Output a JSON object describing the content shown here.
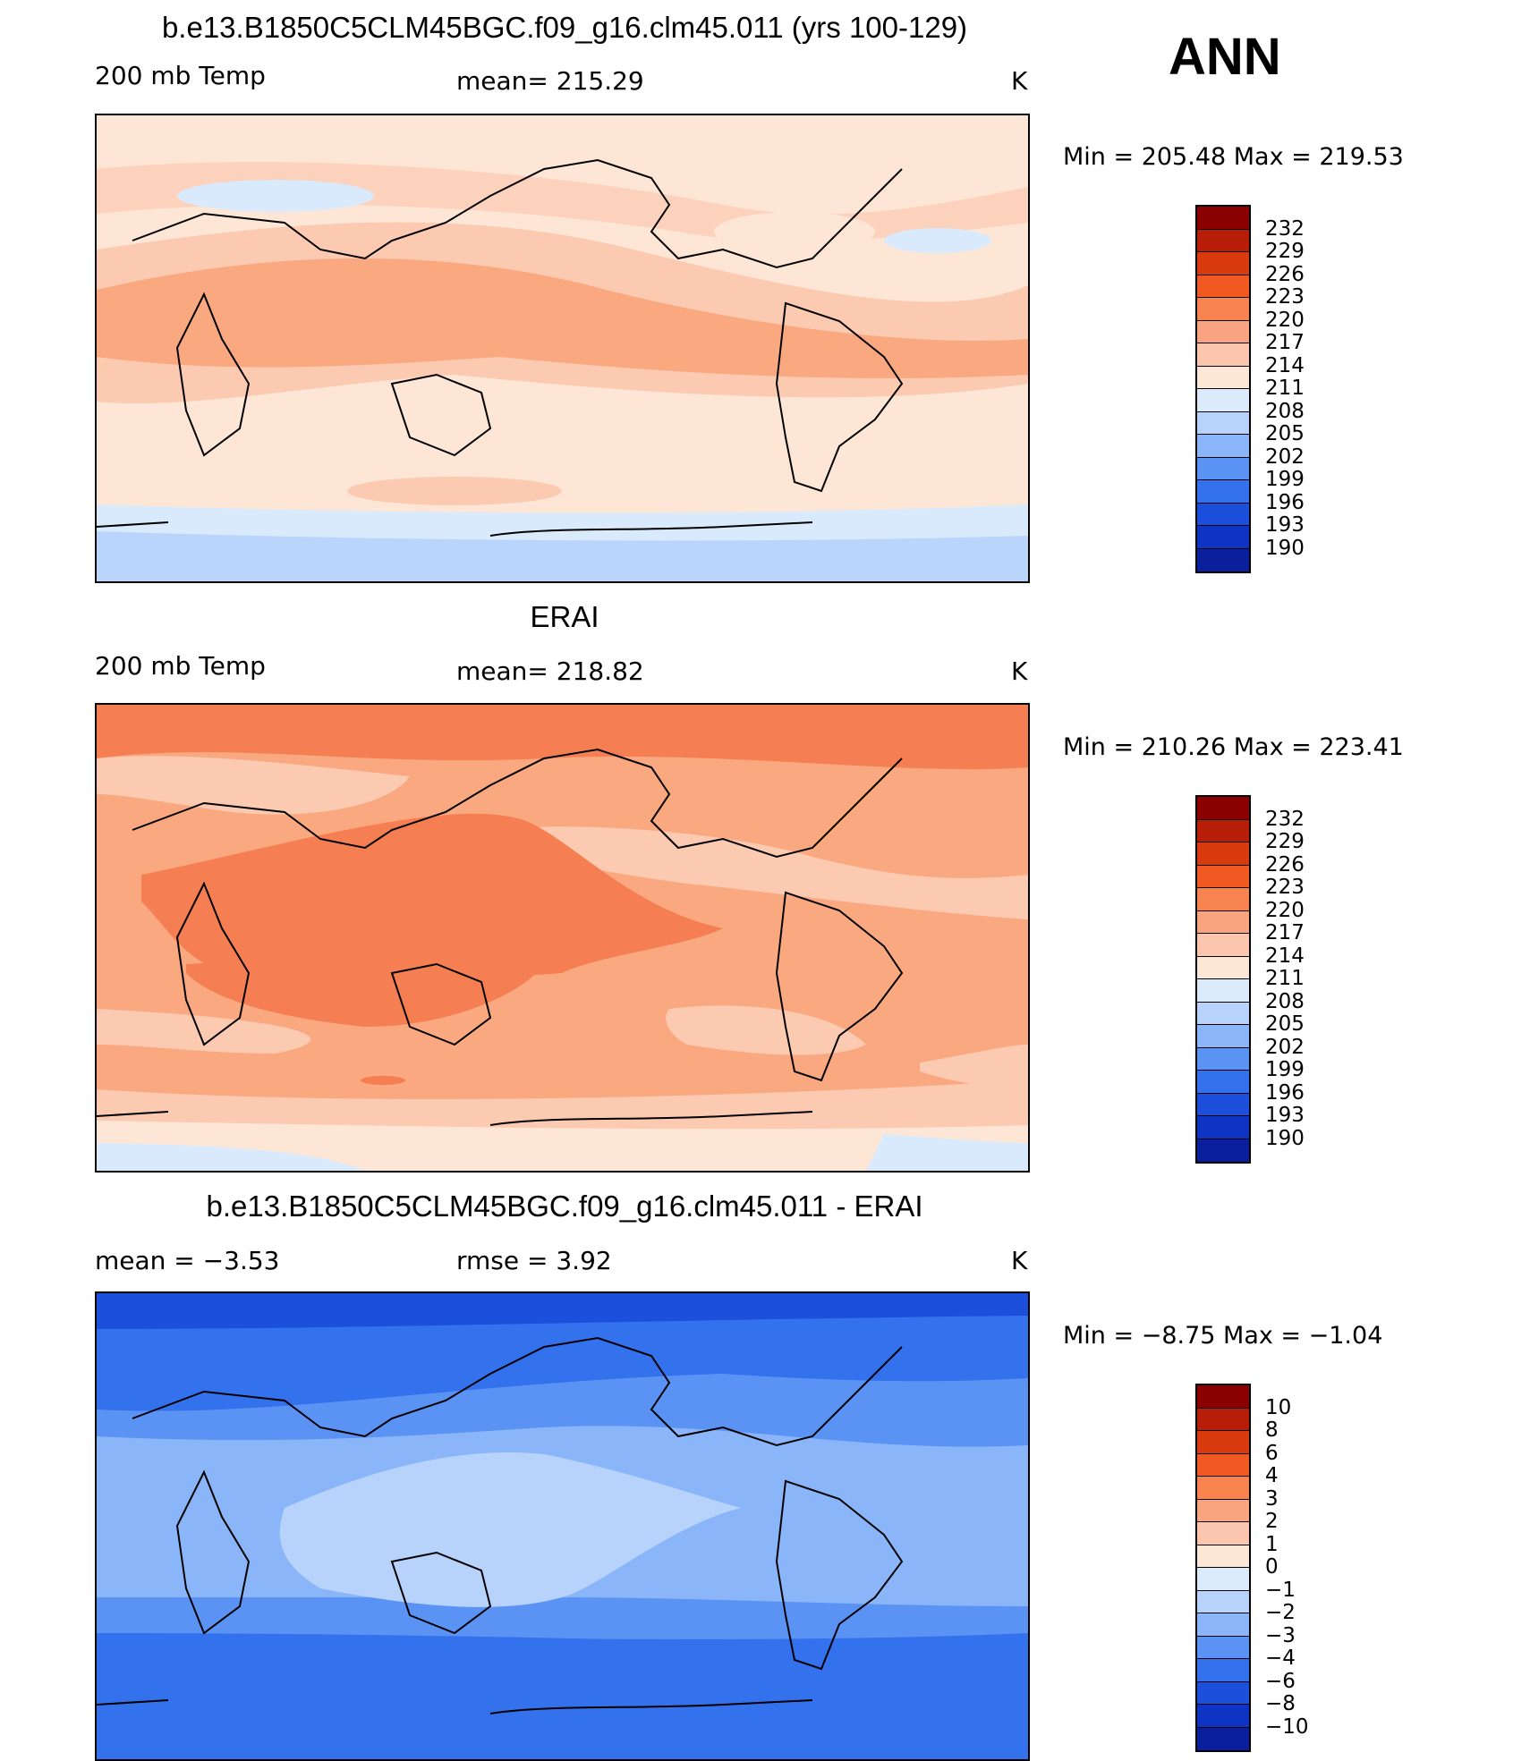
{
  "season": "ANN",
  "panels": [
    {
      "title": "b.e13.B1850C5CLM45BGC.f09_g16.clm45.011 (yrs 100-129)",
      "left_label": "200 mb Temp",
      "center_label": "mean= 215.29",
      "units": "K",
      "minmax": "Min = 205.48 Max = 219.53",
      "colorbar_labels": [
        "232",
        "229",
        "226",
        "223",
        "220",
        "217",
        "214",
        "211",
        "208",
        "205",
        "202",
        "199",
        "196",
        "193",
        "190"
      ],
      "colors": {
        "base": "#fde6d6",
        "warm1": "#fcc9b1",
        "warm2": "#f9a880",
        "warm3": "#f57e53",
        "cold1": "#d9eafc",
        "cold2": "#b9d5fb"
      }
    },
    {
      "title": "ERAI",
      "left_label": "200 mb Temp",
      "center_label": "mean= 218.82",
      "units": "K",
      "minmax": "Min = 210.26 Max = 223.41",
      "colorbar_labels": [
        "232",
        "229",
        "226",
        "223",
        "220",
        "217",
        "214",
        "211",
        "208",
        "205",
        "202",
        "199",
        "196",
        "193",
        "190"
      ]
    },
    {
      "title": "b.e13.B1850C5CLM45BGC.f09_g16.clm45.011 - ERAI",
      "left_label": "mean =   −3.53",
      "center_label": "rmse =    3.92",
      "units": "K",
      "minmax": "Min =  −8.75 Max =  −1.04",
      "colorbar_labels": [
        "10",
        "8",
        "6",
        "4",
        "3",
        "2",
        "1",
        "0",
        "−1",
        "−2",
        "−3",
        "−4",
        "−6",
        "−8",
        "−10"
      ]
    }
  ],
  "colorbar_colors": [
    "#8b0000",
    "#b81d08",
    "#d93a0e",
    "#f05a22",
    "#f7834f",
    "#faa37f",
    "#fcc6ae",
    "#fde7d7",
    "#dcebfc",
    "#b8d3fb",
    "#8ab6f9",
    "#5b93f5",
    "#3471ed",
    "#1b4fdc",
    "#0f33c2",
    "#0a1f9c"
  ]
}
